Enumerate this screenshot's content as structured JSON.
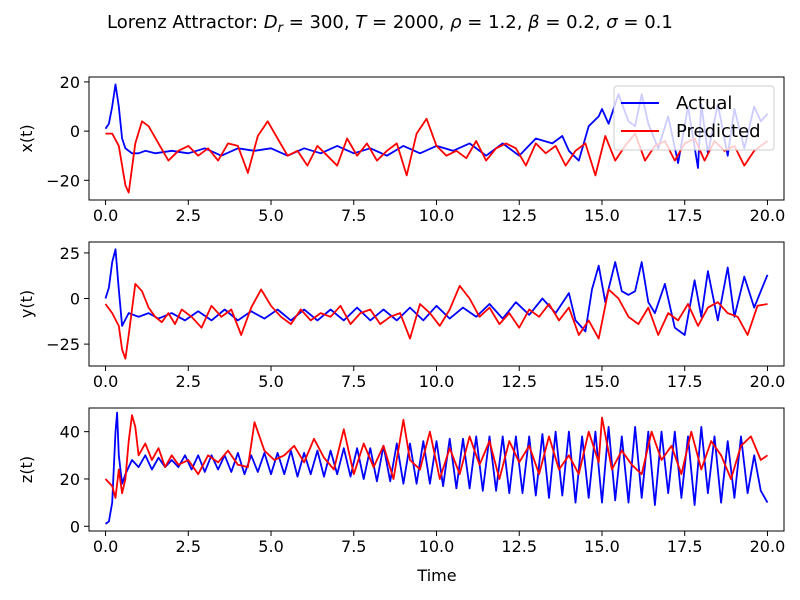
{
  "chart_data": {
    "type": "line",
    "title": "Lorenz Attractor: D_r = 300, T = 2000, ρ = 1.2, β = 0.2, σ = 0.1",
    "title_parts": {
      "prefix": "Lorenz Attractor: ",
      "dr_symbol": "D",
      "dr_sub": "r",
      "dr_value": " = 300, ",
      "t_symbol": "T",
      "t_value": " = 2000, ",
      "rho_symbol": "ρ",
      "rho_value": " = 1.2, ",
      "beta_symbol": "β",
      "beta_value": " = 0.2, ",
      "sigma_symbol": "σ",
      "sigma_value": " = 0.1"
    },
    "xlabel": "Time",
    "xlim": [
      -0.5,
      20.5
    ],
    "xticks": [
      "0.0",
      "2.5",
      "5.0",
      "7.5",
      "10.0",
      "12.5",
      "15.0",
      "17.5",
      "20.0"
    ],
    "xtick_values": [
      0,
      2.5,
      5,
      7.5,
      10,
      12.5,
      15,
      17.5,
      20
    ],
    "colors": {
      "actual": "#0000ff",
      "predicted": "#ff0000"
    },
    "legend": {
      "placement": "top-right",
      "entries": [
        "Actual",
        "Predicted"
      ]
    },
    "grid": false,
    "subplots": [
      {
        "ylabel": "x(t)",
        "ylim": [
          -28,
          22
        ],
        "yticks": [
          "−20",
          "0",
          "20"
        ],
        "ytick_values": [
          -20,
          0,
          20
        ],
        "series": [
          {
            "name": "Actual",
            "x": [
              0,
              0.1,
              0.2,
              0.3,
              0.4,
              0.5,
              0.6,
              0.8,
              1.0,
              1.2,
              1.5,
              2.0,
              2.5,
              3.0,
              3.5,
              4.0,
              4.5,
              5.0,
              5.5,
              6.0,
              6.5,
              7.0,
              7.5,
              8.0,
              8.5,
              9.0,
              9.5,
              10.0,
              10.5,
              11.0,
              11.5,
              12.0,
              12.5,
              13.0,
              13.5,
              13.8,
              14.0,
              14.3,
              14.6,
              14.9,
              15.0,
              15.2,
              15.5,
              15.8,
              16.0,
              16.2,
              16.4,
              16.7,
              17.0,
              17.3,
              17.6,
              17.9,
              18.0,
              18.2,
              18.5,
              18.8,
              19.0,
              19.3,
              19.6,
              19.8,
              20.0
            ],
            "y": [
              1,
              3,
              10,
              19,
              10,
              -3,
              -7,
              -9,
              -9,
              -8,
              -9,
              -8,
              -9,
              -7,
              -10,
              -7,
              -8,
              -7,
              -10,
              -7,
              -9,
              -6,
              -9,
              -7,
              -10,
              -6,
              -9,
              -6,
              -8,
              -5,
              -10,
              -5,
              -10,
              -3,
              -5,
              -2,
              -8,
              -12,
              2,
              6,
              9,
              3,
              15,
              4,
              2,
              15,
              3,
              -7,
              6,
              -13,
              10,
              -15,
              11,
              -9,
              11,
              -10,
              9,
              -7,
              10,
              4,
              7
            ]
          },
          {
            "name": "Predicted",
            "x": [
              0,
              0.2,
              0.4,
              0.6,
              0.7,
              0.9,
              1.1,
              1.3,
              1.6,
              1.9,
              2.2,
              2.5,
              2.8,
              3.1,
              3.4,
              3.7,
              4.0,
              4.3,
              4.6,
              4.9,
              5.2,
              5.5,
              5.8,
              6.1,
              6.4,
              6.7,
              7.0,
              7.3,
              7.6,
              7.9,
              8.2,
              8.5,
              8.8,
              9.1,
              9.4,
              9.7,
              10.0,
              10.3,
              10.6,
              10.9,
              11.2,
              11.5,
              11.8,
              12.1,
              12.4,
              12.7,
              13.0,
              13.3,
              13.6,
              13.9,
              14.2,
              14.5,
              14.8,
              15.1,
              15.4,
              15.7,
              16.0,
              16.3,
              16.6,
              16.9,
              17.2,
              17.5,
              17.8,
              18.1,
              18.4,
              18.7,
              19.0,
              19.3,
              19.6,
              20.0
            ],
            "y": [
              -1,
              -1,
              -6,
              -22,
              -25,
              -5,
              4,
              2,
              -5,
              -12,
              -8,
              -6,
              -10,
              -7,
              -12,
              -5,
              -6,
              -17,
              -2,
              4,
              -3,
              -10,
              -8,
              -14,
              -6,
              -10,
              -14,
              -3,
              -10,
              -5,
              -12,
              -8,
              -5,
              -18,
              -1,
              5,
              -6,
              -10,
              -8,
              -11,
              -4,
              -12,
              -7,
              -5,
              -7,
              -14,
              -5,
              -9,
              -6,
              -14,
              -8,
              -5,
              -18,
              -2,
              -12,
              -6,
              -1,
              -12,
              -6,
              -4,
              -12,
              -5,
              -3,
              -12,
              -4,
              -8,
              -6,
              -14,
              -8,
              -4
            ]
          }
        ]
      },
      {
        "ylabel": "y(t)",
        "ylim": [
          -37,
          31
        ],
        "yticks": [
          "−25",
          "0",
          "25"
        ],
        "ytick_values": [
          -25,
          0,
          25
        ],
        "series": [
          {
            "name": "Actual",
            "x": [
              0,
              0.1,
              0.2,
              0.3,
              0.4,
              0.5,
              0.7,
              1.0,
              1.3,
              1.6,
              2.0,
              2.4,
              2.8,
              3.2,
              3.6,
              4.0,
              4.4,
              4.8,
              5.2,
              5.6,
              6.0,
              6.4,
              6.8,
              7.2,
              7.6,
              8.0,
              8.4,
              8.8,
              9.2,
              9.6,
              10.0,
              10.4,
              10.8,
              11.2,
              11.6,
              12.0,
              12.4,
              12.8,
              13.2,
              13.6,
              14.0,
              14.2,
              14.5,
              14.7,
              14.9,
              15.1,
              15.4,
              15.6,
              15.8,
              16.0,
              16.2,
              16.4,
              16.6,
              16.9,
              17.2,
              17.5,
              17.8,
              18.0,
              18.2,
              18.5,
              18.8,
              19.0,
              19.3,
              19.6,
              19.8,
              20.0
            ],
            "y": [
              0,
              6,
              20,
              27,
              5,
              -15,
              -8,
              -10,
              -8,
              -11,
              -8,
              -12,
              -7,
              -12,
              -6,
              -12,
              -7,
              -11,
              -6,
              -12,
              -6,
              -12,
              -6,
              -12,
              -5,
              -12,
              -6,
              -12,
              -5,
              -12,
              -4,
              -11,
              -5,
              -10,
              -3,
              -11,
              -2,
              -9,
              0,
              -8,
              3,
              -12,
              -18,
              5,
              18,
              -2,
              20,
              4,
              2,
              4,
              20,
              -2,
              -8,
              8,
              -16,
              -20,
              10,
              -10,
              15,
              -12,
              17,
              -10,
              12,
              -5,
              4,
              13
            ]
          },
          {
            "name": "Predicted",
            "x": [
              0,
              0.2,
              0.4,
              0.5,
              0.6,
              0.7,
              0.9,
              1.1,
              1.3,
              1.5,
              1.7,
              1.9,
              2.1,
              2.3,
              2.6,
              2.9,
              3.2,
              3.5,
              3.8,
              4.1,
              4.4,
              4.7,
              5.0,
              5.3,
              5.6,
              5.9,
              6.2,
              6.5,
              6.8,
              7.1,
              7.4,
              7.7,
              8.0,
              8.3,
              8.6,
              8.9,
              9.2,
              9.5,
              9.8,
              10.1,
              10.4,
              10.7,
              11.0,
              11.3,
              11.6,
              11.9,
              12.2,
              12.5,
              12.8,
              13.1,
              13.4,
              13.7,
              14.0,
              14.3,
              14.6,
              14.9,
              15.2,
              15.5,
              15.8,
              16.1,
              16.4,
              16.7,
              17.0,
              17.3,
              17.6,
              17.9,
              18.2,
              18.5,
              18.8,
              19.1,
              19.4,
              19.7,
              20.0
            ],
            "y": [
              -3,
              -8,
              -15,
              -28,
              -33,
              -20,
              8,
              4,
              -5,
              -10,
              -13,
              -8,
              -14,
              -6,
              -10,
              -16,
              -4,
              -10,
              -6,
              -20,
              -5,
              5,
              -4,
              -10,
              -14,
              -6,
              -12,
              -8,
              -10,
              -4,
              -14,
              -8,
              -6,
              -14,
              -10,
              -8,
              -22,
              -3,
              -8,
              -15,
              -6,
              7,
              0,
              -10,
              -5,
              -14,
              -8,
              -16,
              -6,
              -10,
              -3,
              -12,
              -5,
              -20,
              -12,
              -22,
              5,
              0,
              -10,
              -14,
              -5,
              -20,
              -8,
              -12,
              -3,
              -15,
              -5,
              -2,
              -8,
              -10,
              -20,
              -4,
              -3
            ]
          }
        ]
      },
      {
        "ylabel": "z(t)",
        "ylim": [
          -2,
          50
        ],
        "yticks": [
          "0",
          "20",
          "40"
        ],
        "ytick_values": [
          0,
          20,
          40
        ],
        "series": [
          {
            "name": "Actual",
            "x": [
              0,
              0.1,
              0.2,
              0.3,
              0.35,
              0.4,
              0.5,
              0.6,
              0.8,
              1.0,
              1.2,
              1.4,
              1.6,
              1.8,
              2.0,
              2.2,
              2.4,
              2.6,
              2.8,
              3.0,
              3.2,
              3.4,
              3.6,
              3.8,
              4.0,
              4.2,
              4.4,
              4.6,
              4.8,
              5.0,
              5.2,
              5.4,
              5.6,
              5.8,
              6.0,
              6.2,
              6.4,
              6.6,
              6.8,
              7.0,
              7.2,
              7.4,
              7.6,
              7.8,
              8.0,
              8.2,
              8.4,
              8.6,
              8.8,
              9.0,
              9.2,
              9.4,
              9.6,
              9.8,
              10.0,
              10.2,
              10.4,
              10.6,
              10.8,
              11.0,
              11.2,
              11.4,
              11.6,
              11.8,
              12.0,
              12.2,
              12.4,
              12.6,
              12.8,
              13.0,
              13.2,
              13.4,
              13.6,
              13.8,
              14.0,
              14.2,
              14.4,
              14.6,
              14.8,
              15.0,
              15.2,
              15.4,
              15.6,
              15.8,
              16.0,
              16.2,
              16.4,
              16.6,
              16.8,
              17.0,
              17.2,
              17.4,
              17.6,
              17.8,
              18.0,
              18.2,
              18.4,
              18.6,
              18.8,
              19.0,
              19.2,
              19.4,
              19.6,
              19.8,
              20.0
            ],
            "y": [
              1,
              2,
              10,
              40,
              48,
              30,
              18,
              22,
              28,
              25,
              30,
              24,
              29,
              25,
              28,
              25,
              30,
              24,
              30,
              23,
              30,
              24,
              30,
              23,
              31,
              22,
              30,
              23,
              31,
              22,
              31,
              22,
              32,
              21,
              31,
              22,
              32,
              21,
              32,
              22,
              33,
              21,
              33,
              20,
              33,
              19,
              34,
              19,
              35,
              18,
              35,
              18,
              36,
              18,
              36,
              17,
              37,
              16,
              37,
              16,
              38,
              15,
              38,
              15,
              38,
              14,
              38,
              14,
              38,
              13,
              39,
              12,
              40,
              13,
              40,
              10,
              38,
              12,
              40,
              10,
              42,
              11,
              38,
              10,
              42,
              12,
              40,
              9,
              40,
              14,
              40,
              12,
              38,
              9,
              42,
              14,
              38,
              10,
              36,
              12,
              38,
              14,
              30,
              15,
              10
            ]
          },
          {
            "name": "Predicted",
            "x": [
              0,
              0.2,
              0.3,
              0.4,
              0.5,
              0.6,
              0.7,
              0.8,
              0.9,
              1.0,
              1.2,
              1.4,
              1.6,
              1.8,
              2.0,
              2.2,
              2.5,
              2.8,
              3.1,
              3.4,
              3.7,
              4.0,
              4.3,
              4.5,
              4.8,
              5.1,
              5.4,
              5.7,
              6.0,
              6.3,
              6.6,
              6.9,
              7.2,
              7.5,
              7.8,
              8.1,
              8.4,
              8.7,
              9.0,
              9.2,
              9.5,
              9.8,
              10.1,
              10.4,
              10.7,
              11.0,
              11.3,
              11.6,
              11.9,
              12.2,
              12.5,
              12.8,
              13.1,
              13.4,
              13.7,
              14.0,
              14.3,
              14.6,
              14.9,
              15.0,
              15.3,
              15.6,
              15.9,
              16.2,
              16.5,
              16.8,
              17.1,
              17.4,
              17.7,
              18.0,
              18.3,
              18.6,
              18.9,
              19.2,
              19.5,
              19.8,
              20.0
            ],
            "y": [
              20,
              17,
              12,
              24,
              14,
              20,
              36,
              47,
              42,
              30,
              35,
              28,
              33,
              25,
              30,
              26,
              28,
              22,
              30,
              27,
              32,
              26,
              25,
              44,
              32,
              28,
              30,
              34,
              27,
              37,
              29,
              24,
              41,
              22,
              35,
              25,
              34,
              20,
              45,
              28,
              24,
              40,
              20,
              33,
              22,
              38,
              26,
              36,
              20,
              36,
              27,
              34,
              22,
              38,
              24,
              30,
              22,
              40,
              27,
              46,
              24,
              32,
              26,
              22,
              40,
              28,
              34,
              22,
              40,
              24,
              36,
              30,
              20,
              34,
              38,
              28,
              30
            ]
          }
        ]
      }
    ]
  }
}
